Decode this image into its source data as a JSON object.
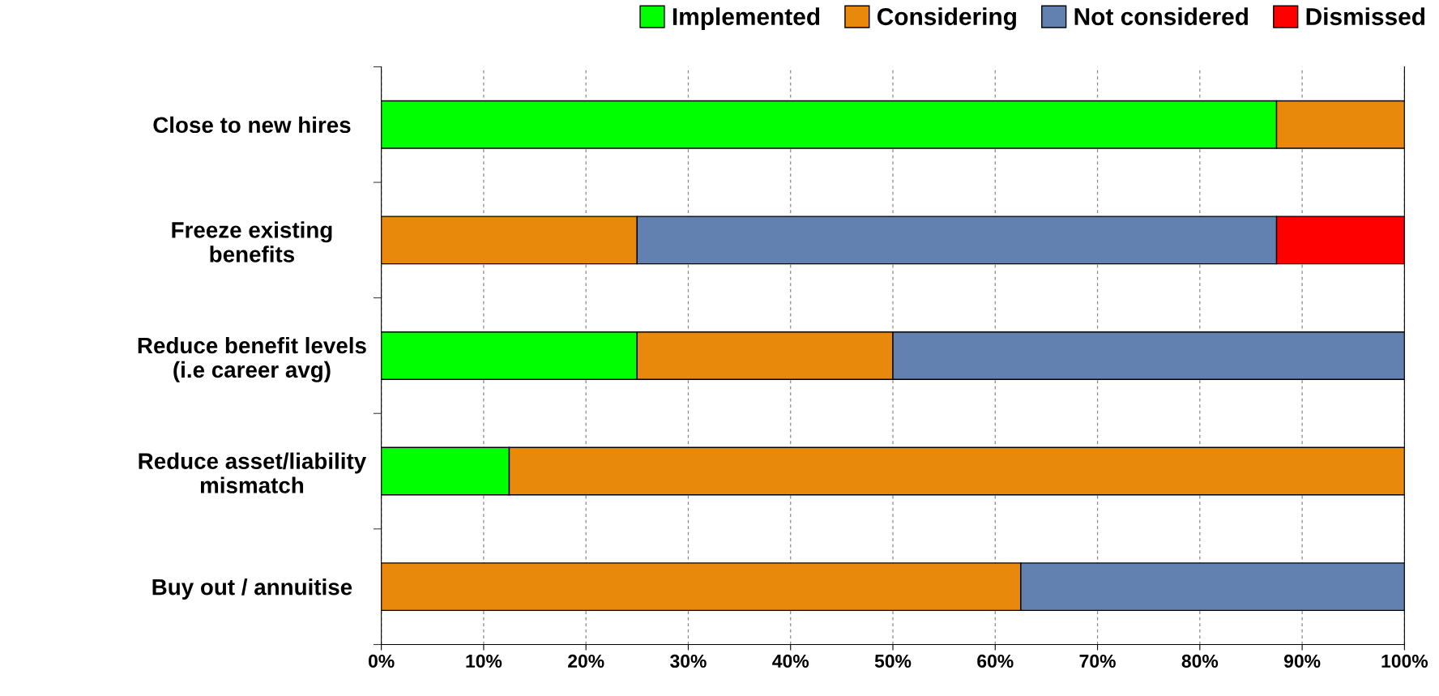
{
  "chart_data": {
    "type": "bar",
    "orientation": "horizontal",
    "stacked": true,
    "categories": [
      "Close to new hires",
      "Freeze existing\nbenefits",
      "Reduce benefit levels\n(i.e career avg)",
      "Reduce asset/liability\nmismatch",
      "Buy out / annuitise"
    ],
    "series": [
      {
        "name": "Implemented",
        "color": "#00ff00",
        "values": [
          87.5,
          null,
          25,
          12.5,
          null
        ]
      },
      {
        "name": "Considering",
        "color": "#e8890c",
        "values": [
          12.5,
          25,
          25,
          87.5,
          62.5
        ]
      },
      {
        "name": "Not considered",
        "color": "#6280b0",
        "values": [
          null,
          62.5,
          50,
          null,
          37.5
        ]
      },
      {
        "name": "Dismissed",
        "color": "#ff0000",
        "values": [
          null,
          12.5,
          null,
          null,
          null
        ]
      }
    ],
    "xlim": [
      0,
      100
    ],
    "xticks": [
      {
        "value": 0,
        "label": "0%"
      },
      {
        "value": 10,
        "label": "10%"
      },
      {
        "value": 20,
        "label": "20%"
      },
      {
        "value": 30,
        "label": "30%"
      },
      {
        "value": 40,
        "label": "40%"
      },
      {
        "value": 50,
        "label": "50%"
      },
      {
        "value": 60,
        "label": "60%"
      },
      {
        "value": 70,
        "label": "70%"
      },
      {
        "value": 80,
        "label": "80%"
      },
      {
        "value": 90,
        "label": "90%"
      },
      {
        "value": 100,
        "label": "100%"
      }
    ],
    "grid": "x",
    "legend": "top right"
  }
}
